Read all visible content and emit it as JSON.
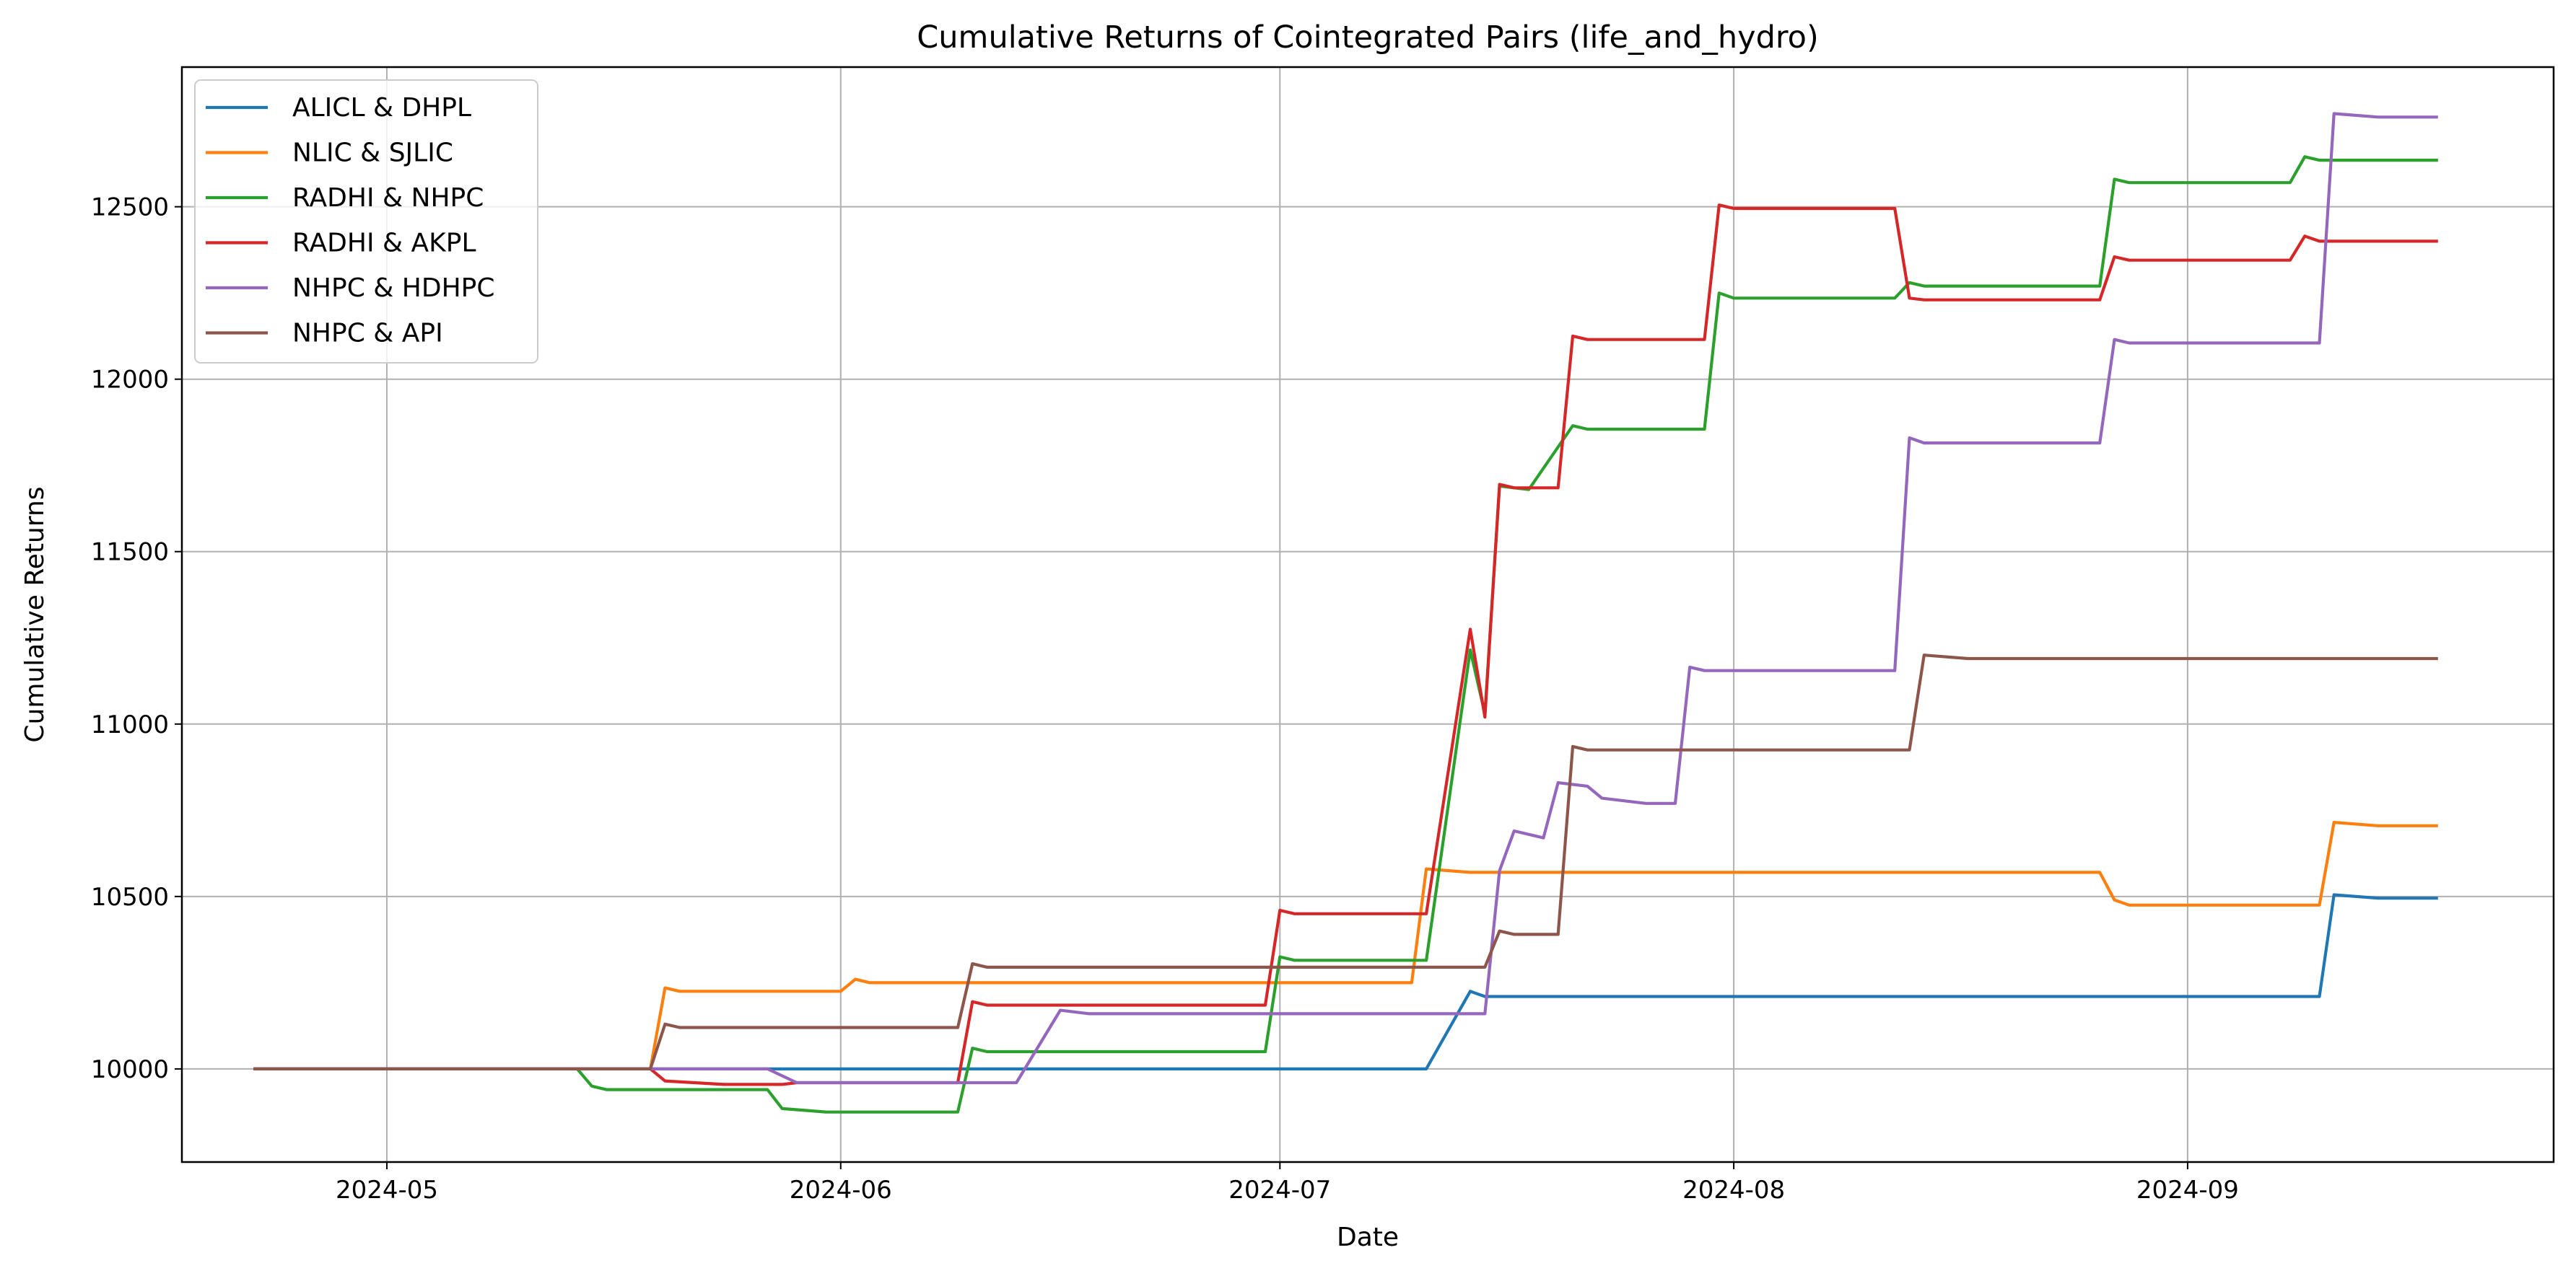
{
  "chart_data": {
    "type": "line",
    "title": "Cumulative Returns of Cointegrated Pairs (life_and_hydro)",
    "xlabel": "Date",
    "ylabel": "Cumulative Returns",
    "x_tick_labels": [
      "2024-05",
      "2024-06",
      "2024-07",
      "2024-08",
      "2024-09"
    ],
    "y_tick_labels": [
      "10000",
      "10500",
      "11000",
      "11500",
      "12000",
      "12500"
    ],
    "xlim": [
      "2024-04-17",
      "2024-09-26"
    ],
    "ylim": [
      9730,
      12905
    ],
    "grid": true,
    "legend_placement": "top-left",
    "series": [
      {
        "name": "ALICL & DHPL",
        "color": "#1f77b4",
        "points": [
          [
            "2024-04-22",
            10000
          ],
          [
            "2024-07-11",
            10000
          ],
          [
            "2024-07-14",
            10225
          ],
          [
            "2024-07-15",
            10210
          ],
          [
            "2024-09-10",
            10210
          ],
          [
            "2024-09-11",
            10505
          ],
          [
            "2024-09-14",
            10495
          ],
          [
            "2024-09-18",
            10495
          ]
        ]
      },
      {
        "name": "NLIC & SJLIC",
        "color": "#ff7f0e",
        "points": [
          [
            "2024-04-22",
            10000
          ],
          [
            "2024-05-19",
            10000
          ],
          [
            "2024-05-20",
            10235
          ],
          [
            "2024-05-21",
            10225
          ],
          [
            "2024-06-01",
            10225
          ],
          [
            "2024-06-02",
            10260
          ],
          [
            "2024-06-03",
            10250
          ],
          [
            "2024-07-10",
            10250
          ],
          [
            "2024-07-11",
            10580
          ],
          [
            "2024-07-14",
            10570
          ],
          [
            "2024-08-26",
            10570
          ],
          [
            "2024-08-27",
            10490
          ],
          [
            "2024-08-28",
            10475
          ],
          [
            "2024-09-10",
            10475
          ],
          [
            "2024-09-11",
            10715
          ],
          [
            "2024-09-14",
            10705
          ],
          [
            "2024-09-18",
            10705
          ]
        ]
      },
      {
        "name": "RADHI & NHPC",
        "color": "#2ca02c",
        "points": [
          [
            "2024-04-22",
            10000
          ],
          [
            "2024-05-14",
            10000
          ],
          [
            "2024-05-15",
            9950
          ],
          [
            "2024-05-16",
            9940
          ],
          [
            "2024-05-27",
            9940
          ],
          [
            "2024-05-28",
            9885
          ],
          [
            "2024-05-31",
            9875
          ],
          [
            "2024-06-09",
            9875
          ],
          [
            "2024-06-10",
            10060
          ],
          [
            "2024-06-11",
            10050
          ],
          [
            "2024-06-30",
            10050
          ],
          [
            "2024-07-01",
            10325
          ],
          [
            "2024-07-02",
            10315
          ],
          [
            "2024-07-11",
            10315
          ],
          [
            "2024-07-14",
            11215
          ],
          [
            "2024-07-15",
            11030
          ],
          [
            "2024-07-16",
            11690
          ],
          [
            "2024-07-18",
            11680
          ],
          [
            "2024-07-21",
            11865
          ],
          [
            "2024-07-22",
            11855
          ],
          [
            "2024-07-30",
            11855
          ],
          [
            "2024-07-31",
            12250
          ],
          [
            "2024-08-01",
            12235
          ],
          [
            "2024-08-12",
            12235
          ],
          [
            "2024-08-13",
            12280
          ],
          [
            "2024-08-14",
            12270
          ],
          [
            "2024-08-26",
            12270
          ],
          [
            "2024-08-27",
            12580
          ],
          [
            "2024-08-28",
            12570
          ],
          [
            "2024-09-08",
            12570
          ],
          [
            "2024-09-09",
            12645
          ],
          [
            "2024-09-10",
            12635
          ],
          [
            "2024-09-18",
            12635
          ]
        ]
      },
      {
        "name": "RADHI & AKPL",
        "color": "#d62728",
        "points": [
          [
            "2024-04-22",
            10000
          ],
          [
            "2024-05-19",
            10000
          ],
          [
            "2024-05-20",
            9965
          ],
          [
            "2024-05-24",
            9955
          ],
          [
            "2024-05-28",
            9955
          ],
          [
            "2024-05-29",
            9960
          ],
          [
            "2024-06-09",
            9960
          ],
          [
            "2024-06-10",
            10195
          ],
          [
            "2024-06-11",
            10185
          ],
          [
            "2024-06-30",
            10185
          ],
          [
            "2024-07-01",
            10460
          ],
          [
            "2024-07-02",
            10450
          ],
          [
            "2024-07-11",
            10450
          ],
          [
            "2024-07-14",
            11275
          ],
          [
            "2024-07-15",
            11020
          ],
          [
            "2024-07-16",
            11695
          ],
          [
            "2024-07-17",
            11685
          ],
          [
            "2024-07-20",
            11685
          ],
          [
            "2024-07-21",
            12125
          ],
          [
            "2024-07-22",
            12115
          ],
          [
            "2024-07-30",
            12115
          ],
          [
            "2024-07-31",
            12505
          ],
          [
            "2024-08-01",
            12495
          ],
          [
            "2024-08-12",
            12495
          ],
          [
            "2024-08-13",
            12235
          ],
          [
            "2024-08-14",
            12230
          ],
          [
            "2024-08-26",
            12230
          ],
          [
            "2024-08-27",
            12355
          ],
          [
            "2024-08-28",
            12345
          ],
          [
            "2024-09-08",
            12345
          ],
          [
            "2024-09-09",
            12415
          ],
          [
            "2024-09-10",
            12400
          ],
          [
            "2024-09-18",
            12400
          ]
        ]
      },
      {
        "name": "NHPC & HDHPC",
        "color": "#9467bd",
        "points": [
          [
            "2024-04-22",
            10000
          ],
          [
            "2024-05-27",
            10000
          ],
          [
            "2024-05-29",
            9960
          ],
          [
            "2024-06-13",
            9960
          ],
          [
            "2024-06-16",
            10170
          ],
          [
            "2024-06-18",
            10160
          ],
          [
            "2024-07-15",
            10160
          ],
          [
            "2024-07-16",
            10575
          ],
          [
            "2024-07-17",
            10690
          ],
          [
            "2024-07-19",
            10670
          ],
          [
            "2024-07-20",
            10830
          ],
          [
            "2024-07-22",
            10820
          ],
          [
            "2024-07-23",
            10785
          ],
          [
            "2024-07-26",
            10770
          ],
          [
            "2024-07-28",
            10770
          ],
          [
            "2024-07-29",
            11165
          ],
          [
            "2024-07-30",
            11155
          ],
          [
            "2024-08-12",
            11155
          ],
          [
            "2024-08-13",
            11830
          ],
          [
            "2024-08-14",
            11815
          ],
          [
            "2024-08-26",
            11815
          ],
          [
            "2024-08-27",
            12115
          ],
          [
            "2024-08-28",
            12105
          ],
          [
            "2024-09-10",
            12105
          ],
          [
            "2024-09-11",
            12770
          ],
          [
            "2024-09-14",
            12760
          ],
          [
            "2024-09-18",
            12760
          ]
        ]
      },
      {
        "name": "NHPC & API",
        "color": "#8c564b",
        "points": [
          [
            "2024-04-22",
            10000
          ],
          [
            "2024-05-19",
            10000
          ],
          [
            "2024-05-20",
            10130
          ],
          [
            "2024-05-21",
            10120
          ],
          [
            "2024-06-09",
            10120
          ],
          [
            "2024-06-10",
            10305
          ],
          [
            "2024-06-11",
            10295
          ],
          [
            "2024-07-15",
            10295
          ],
          [
            "2024-07-16",
            10400
          ],
          [
            "2024-07-17",
            10390
          ],
          [
            "2024-07-20",
            10390
          ],
          [
            "2024-07-21",
            10935
          ],
          [
            "2024-07-22",
            10925
          ],
          [
            "2024-08-13",
            10925
          ],
          [
            "2024-08-14",
            11200
          ],
          [
            "2024-08-17",
            11190
          ],
          [
            "2024-09-18",
            11190
          ]
        ]
      }
    ]
  }
}
